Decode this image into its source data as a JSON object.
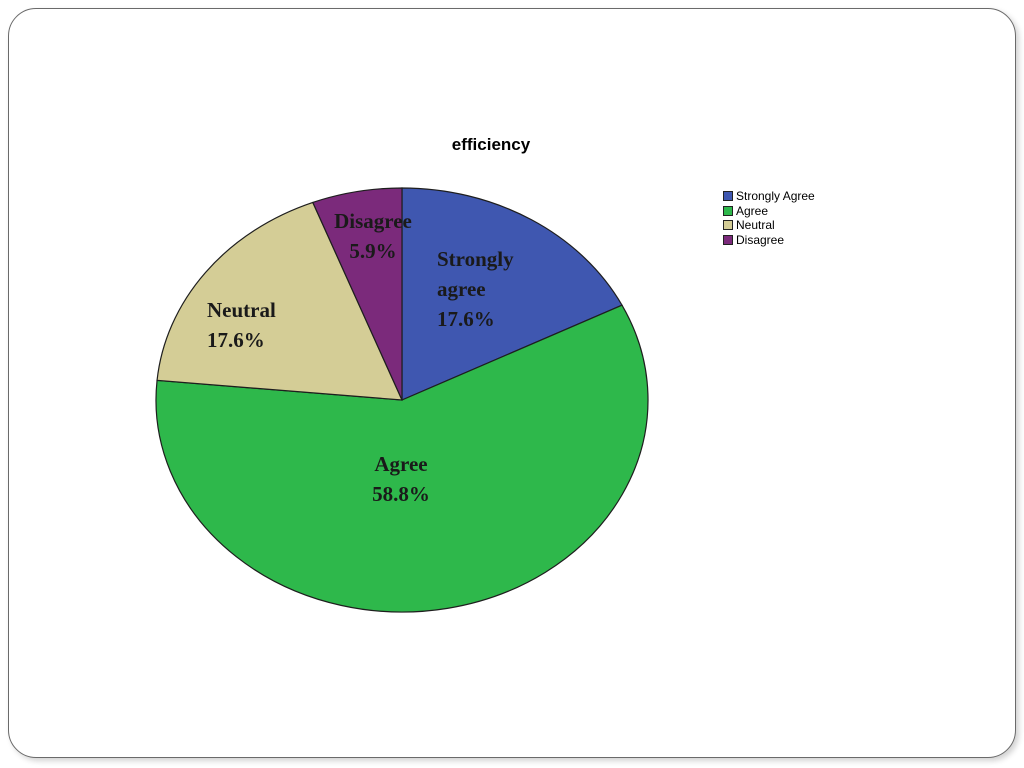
{
  "chart_data": {
    "type": "pie",
    "title": "efficiency",
    "slices": [
      {
        "name": "Strongly Agree",
        "value": 17.6,
        "label_lines": [
          "Strongly",
          "agree",
          "17.6%"
        ],
        "color": "#3f57b0"
      },
      {
        "name": "Agree",
        "value": 58.8,
        "label_lines": [
          "Agree",
          "58.8%"
        ],
        "color": "#2eb84b"
      },
      {
        "name": "Neutral",
        "value": 17.6,
        "label_lines": [
          "Neutral",
          "17.6%"
        ],
        "color": "#d4cd96"
      },
      {
        "name": "Disagree",
        "value": 5.9,
        "label_lines": [
          "Disagree",
          "5.9%"
        ],
        "color": "#7b2a7b"
      }
    ],
    "legend_position": "top-right"
  }
}
